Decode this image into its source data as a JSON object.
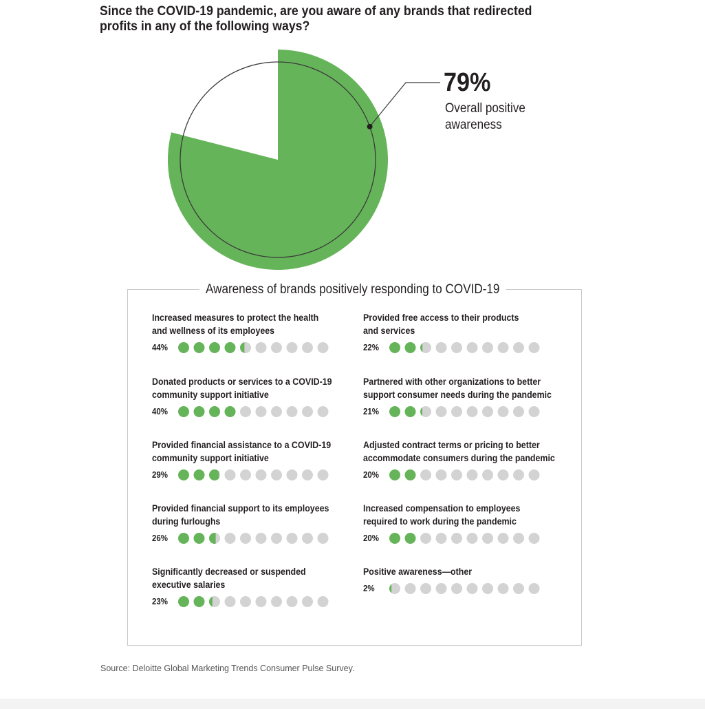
{
  "title": "Since the COVID-19 pandemic, are you aware of any brands that redirected profits in any of the following ways?",
  "colors": {
    "accent": "#66b45a",
    "empty": "#d3d3d3",
    "text": "#231f20",
    "line": "#3a3a3a"
  },
  "chart_data": [
    {
      "type": "pie",
      "title": "",
      "slices": [
        {
          "label": "Overall positive awareness",
          "value": 79
        },
        {
          "label": "",
          "value": 21
        }
      ],
      "annotation": {
        "value_label": "79%",
        "text": "Overall positive awareness"
      }
    },
    {
      "type": "bar",
      "title": "Awareness of brands positively responding to COVID-19",
      "unit": "%",
      "max": 100,
      "categories": [
        "Increased measures to protect the health and wellness of its employees",
        "Donated products or services to a COVID-19 community support initiative",
        "Provided financial assistance to a COVID-19 community support initiative",
        "Provided financial support to its employees during furloughs",
        "Significantly decreased or suspended executive salaries",
        "Provided free access to their products and services",
        "Partnered with other organizations to better support consumer needs during the pandemic",
        "Adjusted contract terms or pricing to better accommodate consumers during the pandemic",
        "Increased compensation to employees required to work during the pandemic",
        "Positive awareness—other"
      ],
      "values": [
        44,
        40,
        29,
        26,
        23,
        22,
        21,
        20,
        20,
        2
      ]
    }
  ],
  "items": [
    {
      "line1": "Increased measures to protect the health",
      "line2": "and wellness of its employees",
      "pct": "44%",
      "value": 44
    },
    {
      "line1": "Donated products or services to a COVID-19",
      "line2": "community support initiative",
      "pct": "40%",
      "value": 40
    },
    {
      "line1": "Provided financial assistance to a COVID-19",
      "line2": "community support initiative",
      "pct": "29%",
      "value": 29
    },
    {
      "line1": "Provided financial support to its employees",
      "line2": "during furloughs",
      "pct": "26%",
      "value": 26
    },
    {
      "line1": "Significantly decreased or suspended",
      "line2": "executive salaries",
      "pct": "23%",
      "value": 23
    },
    {
      "line1": "Provided free access to their products",
      "line2": "and services",
      "pct": "22%",
      "value": 22
    },
    {
      "line1": "Partnered with other organizations to better",
      "line2": "support consumer needs during the pandemic",
      "pct": "21%",
      "value": 21
    },
    {
      "line1": "Adjusted contract terms or pricing to better",
      "line2": "accommodate consumers during the pandemic",
      "pct": "20%",
      "value": 20
    },
    {
      "line1": "Increased compensation to employees",
      "line2": "required to work during the pandemic",
      "pct": "20%",
      "value": 20
    },
    {
      "line1": "Positive awareness—other",
      "line2": "",
      "pct": "2%",
      "value": 2
    }
  ],
  "source": "Source: Deloitte Global Marketing Trends Consumer Pulse Survey."
}
